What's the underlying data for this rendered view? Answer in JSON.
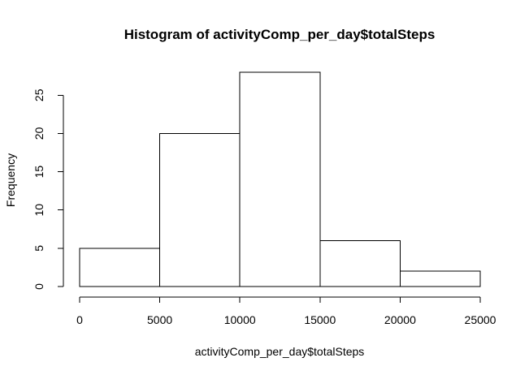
{
  "chart_data": {
    "type": "bar",
    "subtype": "histogram",
    "title": "Histogram of activityComp_per_day$totalSteps",
    "xlabel": "activityComp_per_day$totalSteps",
    "ylabel": "Frequency",
    "bins": [
      {
        "from": 0,
        "to": 5000,
        "count": 5
      },
      {
        "from": 5000,
        "to": 10000,
        "count": 20
      },
      {
        "from": 10000,
        "to": 15000,
        "count": 28
      },
      {
        "from": 15000,
        "to": 20000,
        "count": 6
      },
      {
        "from": 20000,
        "to": 25000,
        "count": 2
      }
    ],
    "xlim": [
      0,
      25000
    ],
    "ylim": [
      0,
      28
    ],
    "x_ticks": [
      0,
      5000,
      10000,
      15000,
      20000,
      25000
    ],
    "y_ticks": [
      0,
      5,
      10,
      15,
      20,
      25
    ],
    "grid": false,
    "bar_fill": "#ffffff",
    "bar_stroke": "#000000"
  }
}
